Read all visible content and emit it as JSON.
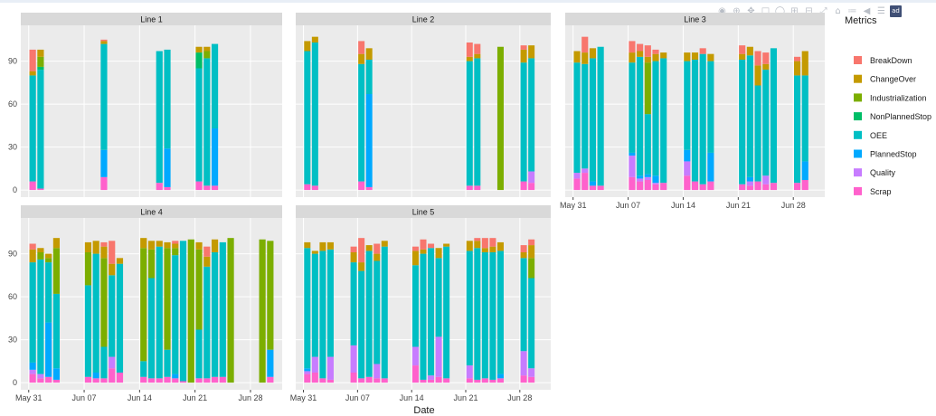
{
  "chart_data": {
    "type": "bar",
    "stacked": true,
    "xlabel": "Date",
    "x_tick_labels": [
      "May 31",
      "Jun 07",
      "Jun 14",
      "Jun 21",
      "Jun 28"
    ],
    "x_tick_dates": [
      "2021-05-31",
      "2021-06-07",
      "2021-06-14",
      "2021-06-21",
      "2021-06-28"
    ],
    "x_range": [
      "2021-05-30",
      "2021-07-02"
    ],
    "y_ticks": [
      0,
      30,
      60,
      90
    ],
    "ylim": [
      -5,
      115
    ],
    "grid": true,
    "legend_title": "Metrics",
    "legend_position": "right",
    "metrics": [
      {
        "name": "BreakDown",
        "color": "#F8766D"
      },
      {
        "name": "ChangeOver",
        "color": "#C49A00"
      },
      {
        "name": "Industrialization",
        "color": "#7CAE00"
      },
      {
        "name": "NonPlannedStop",
        "color": "#00BE67"
      },
      {
        "name": "OEE",
        "color": "#00BFC4"
      },
      {
        "name": "PlannedStop",
        "color": "#00A9FF"
      },
      {
        "name": "Quality",
        "color": "#C77CFF"
      },
      {
        "name": "Scrap",
        "color": "#FF61CC"
      }
    ],
    "stack_order": [
      "Scrap",
      "Quality",
      "PlannedStop",
      "OEE",
      "NonPlannedStop",
      "Industrialization",
      "ChangeOver",
      "BreakDown"
    ],
    "panels": [
      {
        "title": "Line 1",
        "bars": [
          {
            "date": "2021-05-31",
            "Scrap": 6,
            "OEE": 74,
            "ChangeOver": 3,
            "BreakDown": 15
          },
          {
            "date": "2021-06-01",
            "Scrap": 1,
            "OEE": 83,
            "NonPlannedStop": 2,
            "Industrialization": 7,
            "ChangeOver": 5
          },
          {
            "date": "2021-06-09",
            "Scrap": 9,
            "PlannedStop": 19,
            "OEE": 74,
            "ChangeOver": 2,
            "BreakDown": 1
          },
          {
            "date": "2021-06-16",
            "Scrap": 5,
            "OEE": 92
          },
          {
            "date": "2021-06-17",
            "Scrap": 2,
            "PlannedStop": 27,
            "OEE": 69
          },
          {
            "date": "2021-06-21",
            "Scrap": 6,
            "OEE": 79,
            "NonPlannedStop": 11,
            "ChangeOver": 4
          },
          {
            "date": "2021-06-22",
            "Scrap": 3,
            "OEE": 89,
            "Industrialization": 5,
            "ChangeOver": 3
          },
          {
            "date": "2021-06-23",
            "Scrap": 3,
            "PlannedStop": 40,
            "OEE": 59
          }
        ]
      },
      {
        "title": "Line 2",
        "bars": [
          {
            "date": "2021-05-31",
            "Scrap": 4,
            "OEE": 93,
            "ChangeOver": 7
          },
          {
            "date": "2021-06-01",
            "Scrap": 3,
            "OEE": 100,
            "ChangeOver": 4
          },
          {
            "date": "2021-06-07",
            "Scrap": 6,
            "OEE": 82,
            "ChangeOver": 7,
            "BreakDown": 9
          },
          {
            "date": "2021-06-08",
            "Scrap": 2,
            "PlannedStop": 65,
            "OEE": 24,
            "ChangeOver": 8
          },
          {
            "date": "2021-06-21",
            "Scrap": 3,
            "OEE": 87,
            "ChangeOver": 3,
            "BreakDown": 10
          },
          {
            "date": "2021-06-22",
            "Scrap": 3,
            "OEE": 89,
            "ChangeOver": 3,
            "BreakDown": 7
          },
          {
            "date": "2021-06-25",
            "Industrialization": 100
          },
          {
            "date": "2021-06-28",
            "Scrap": 6,
            "OEE": 83,
            "ChangeOver": 9,
            "BreakDown": 3
          },
          {
            "date": "2021-06-29",
            "Scrap": 5,
            "Quality": 8,
            "OEE": 79,
            "ChangeOver": 9
          }
        ]
      },
      {
        "title": "Line 3",
        "bars": [
          {
            "date": "2021-05-31",
            "Scrap": 8,
            "Quality": 4,
            "OEE": 77,
            "ChangeOver": 8
          },
          {
            "date": "2021-06-01",
            "Scrap": 12,
            "Quality": 3,
            "OEE": 73,
            "ChangeOver": 8,
            "BreakDown": 11
          },
          {
            "date": "2021-06-02",
            "Scrap": 3,
            "PlannedStop": 3,
            "OEE": 86,
            "ChangeOver": 7
          },
          {
            "date": "2021-06-03",
            "Scrap": 3,
            "OEE": 97
          },
          {
            "date": "2021-06-07",
            "Scrap": 9,
            "Quality": 15,
            "PlannedStop": 2,
            "OEE": 63,
            "ChangeOver": 7,
            "BreakDown": 8
          },
          {
            "date": "2021-06-08",
            "Scrap": 6,
            "Quality": 2,
            "PlannedStop": 2,
            "OEE": 83,
            "ChangeOver": 4,
            "BreakDown": 5
          },
          {
            "date": "2021-06-09",
            "Scrap": 7,
            "Quality": 2,
            "PlannedStop": 2,
            "OEE": 42,
            "Industrialization": 36,
            "ChangeOver": 4,
            "BreakDown": 8
          },
          {
            "date": "2021-06-10",
            "Scrap": 4,
            "Quality": 1,
            "PlannedStop": 5,
            "OEE": 80,
            "ChangeOver": 5,
            "BreakDown": 3
          },
          {
            "date": "2021-06-11",
            "Scrap": 5,
            "OEE": 87,
            "ChangeOver": 4
          },
          {
            "date": "2021-06-14",
            "Scrap": 10,
            "Quality": 10,
            "PlannedStop": 8,
            "OEE": 62,
            "ChangeOver": 6
          },
          {
            "date": "2021-06-15",
            "Scrap": 6,
            "OEE": 85,
            "ChangeOver": 5
          },
          {
            "date": "2021-06-16",
            "Scrap": 4,
            "OEE": 91,
            "BreakDown": 4
          },
          {
            "date": "2021-06-17",
            "Scrap": 6,
            "PlannedStop": 20,
            "OEE": 64,
            "ChangeOver": 5
          },
          {
            "date": "2021-06-21",
            "Scrap": 4,
            "OEE": 87,
            "ChangeOver": 4,
            "BreakDown": 6
          },
          {
            "date": "2021-06-22",
            "Scrap": 3,
            "Quality": 3,
            "PlannedStop": 3,
            "OEE": 85,
            "ChangeOver": 6
          },
          {
            "date": "2021-06-23",
            "Scrap": 6,
            "OEE": 67,
            "ChangeOver": 14,
            "BreakDown": 10
          },
          {
            "date": "2021-06-24",
            "Scrap": 4,
            "Quality": 6,
            "OEE": 74,
            "ChangeOver": 4,
            "BreakDown": 8
          },
          {
            "date": "2021-06-25",
            "Scrap": 5,
            "OEE": 94
          },
          {
            "date": "2021-06-28",
            "Scrap": 5,
            "OEE": 75,
            "ChangeOver": 10,
            "BreakDown": 3
          },
          {
            "date": "2021-06-29",
            "Scrap": 7,
            "PlannedStop": 13,
            "OEE": 60,
            "ChangeOver": 17
          }
        ]
      },
      {
        "title": "Line 4",
        "bars": [
          {
            "date": "2021-05-31",
            "Scrap": 6,
            "Quality": 3,
            "PlannedStop": 5,
            "OEE": 70,
            "ChangeOver": 9,
            "BreakDown": 4
          },
          {
            "date": "2021-06-01",
            "Scrap": 3,
            "Quality": 3,
            "OEE": 80,
            "Industrialization": 5,
            "ChangeOver": 3
          },
          {
            "date": "2021-06-02",
            "Scrap": 4,
            "PlannedStop": 38,
            "OEE": 42,
            "Industrialization": 3,
            "ChangeOver": 3
          },
          {
            "date": "2021-06-03",
            "Scrap": 2,
            "PlannedStop": 8,
            "OEE": 52,
            "Industrialization": 32,
            "ChangeOver": 7
          },
          {
            "date": "2021-06-07",
            "Scrap": 4,
            "OEE": 64,
            "Industrialization": 23,
            "ChangeOver": 7
          },
          {
            "date": "2021-06-08",
            "Scrap": 3,
            "PlannedStop": 4,
            "OEE": 83,
            "ChangeOver": 9
          },
          {
            "date": "2021-06-09",
            "Scrap": 3,
            "OEE": 22,
            "Industrialization": 62,
            "ChangeOver": 8,
            "BreakDown": 3
          },
          {
            "date": "2021-06-10",
            "Scrap": 10,
            "Quality": 8,
            "OEE": 57,
            "ChangeOver": 8,
            "BreakDown": 16
          },
          {
            "date": "2021-06-11",
            "Scrap": 7,
            "OEE": 76,
            "ChangeOver": 4
          },
          {
            "date": "2021-06-14",
            "Scrap": 4,
            "OEE": 11,
            "Industrialization": 79,
            "ChangeOver": 7
          },
          {
            "date": "2021-06-15",
            "Scrap": 3,
            "OEE": 70,
            "Industrialization": 20,
            "ChangeOver": 6
          },
          {
            "date": "2021-06-16",
            "Scrap": 3,
            "OEE": 92,
            "ChangeOver": 4
          },
          {
            "date": "2021-06-17",
            "Scrap": 4,
            "OEE": 19,
            "Industrialization": 71,
            "ChangeOver": 4
          },
          {
            "date": "2021-06-18",
            "Scrap": 3,
            "PlannedStop": 3,
            "OEE": 83,
            "Industrialization": 5,
            "ChangeOver": 3,
            "BreakDown": 2
          },
          {
            "date": "2021-06-19",
            "Scrap": 1,
            "OEE": 98
          },
          {
            "date": "2021-06-20",
            "Industrialization": 100
          },
          {
            "date": "2021-06-21",
            "Scrap": 3,
            "OEE": 34,
            "Industrialization": 56,
            "ChangeOver": 5
          },
          {
            "date": "2021-06-22",
            "Scrap": 3,
            "OEE": 78,
            "ChangeOver": 7,
            "BreakDown": 7
          },
          {
            "date": "2021-06-23",
            "Scrap": 4,
            "OEE": 87,
            "ChangeOver": 9
          },
          {
            "date": "2021-06-24",
            "Scrap": 4,
            "OEE": 94
          },
          {
            "date": "2021-06-25",
            "Industrialization": 101
          },
          {
            "date": "2021-06-29",
            "Industrialization": 100
          },
          {
            "date": "2021-06-30",
            "Scrap": 4,
            "PlannedStop": 19,
            "Industrialization": 76
          }
        ]
      },
      {
        "title": "Line 5",
        "bars": [
          {
            "date": "2021-05-31",
            "Scrap": 6,
            "Quality": 2,
            "PlannedStop": 2,
            "OEE": 84,
            "ChangeOver": 4
          },
          {
            "date": "2021-06-01",
            "Scrap": 7,
            "Quality": 11,
            "OEE": 72,
            "ChangeOver": 2
          },
          {
            "date": "2021-06-02",
            "Scrap": 3,
            "OEE": 89,
            "ChangeOver": 6
          },
          {
            "date": "2021-06-03",
            "Scrap": 2,
            "Quality": 16,
            "OEE": 75,
            "ChangeOver": 5
          },
          {
            "date": "2021-06-06",
            "Scrap": 7,
            "Quality": 19,
            "OEE": 58,
            "ChangeOver": 7,
            "BreakDown": 4
          },
          {
            "date": "2021-06-07",
            "Scrap": 3,
            "OEE": 75,
            "ChangeOver": 6,
            "BreakDown": 17
          },
          {
            "date": "2021-06-08",
            "Scrap": 4,
            "OEE": 88,
            "ChangeOver": 4
          },
          {
            "date": "2021-06-09",
            "Scrap": 3,
            "Quality": 10,
            "OEE": 72,
            "ChangeOver": 5,
            "BreakDown": 7
          },
          {
            "date": "2021-06-10",
            "Scrap": 3,
            "OEE": 92,
            "ChangeOver": 4
          },
          {
            "date": "2021-06-14",
            "Scrap": 12,
            "Quality": 13,
            "OEE": 57,
            "ChangeOver": 10,
            "BreakDown": 3
          },
          {
            "date": "2021-06-15",
            "Scrap": 2,
            "OEE": 88,
            "ChangeOver": 3,
            "BreakDown": 7
          },
          {
            "date": "2021-06-16",
            "Scrap": 2,
            "Quality": 3,
            "OEE": 89,
            "BreakDown": 3
          },
          {
            "date": "2021-06-17",
            "Scrap": 4,
            "Quality": 28,
            "OEE": 55,
            "ChangeOver": 7
          },
          {
            "date": "2021-06-18",
            "Scrap": 3,
            "OEE": 92,
            "ChangeOver": 2
          },
          {
            "date": "2021-06-21",
            "Scrap": 3,
            "Quality": 9,
            "OEE": 80,
            "ChangeOver": 7
          },
          {
            "date": "2021-06-22",
            "Scrap": 2,
            "OEE": 92,
            "ChangeOver": 5,
            "BreakDown": 2
          },
          {
            "date": "2021-06-23",
            "Scrap": 3,
            "OEE": 88,
            "ChangeOver": 3,
            "BreakDown": 7
          },
          {
            "date": "2021-06-24",
            "Scrap": 2,
            "OEE": 89,
            "ChangeOver": 4,
            "BreakDown": 6
          },
          {
            "date": "2021-06-25",
            "Scrap": 3,
            "PlannedStop": 3,
            "OEE": 86,
            "ChangeOver": 6
          },
          {
            "date": "2021-06-28",
            "Scrap": 5,
            "Quality": 17,
            "OEE": 65,
            "ChangeOver": 4,
            "BreakDown": 5
          },
          {
            "date": "2021-06-29",
            "Scrap": 4,
            "Quality": 6,
            "OEE": 63,
            "Industrialization": 14,
            "ChangeOver": 9,
            "BreakDown": 4
          }
        ]
      }
    ]
  }
}
